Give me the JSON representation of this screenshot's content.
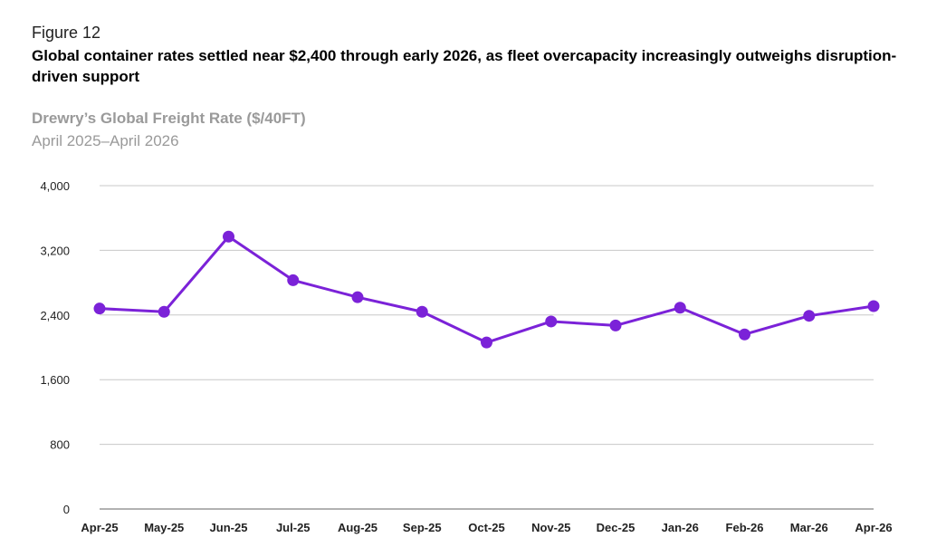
{
  "figure_label": "Figure 12",
  "headline": "Global container rates settled near $2,400 through early 2026, as fleet overcapacity increasingly outweighs disruption-driven support",
  "chart_data": {
    "type": "line",
    "title": "Drewry’s Global Freight Rate ($/40FT)",
    "subtitle": "April 2025–April 2026",
    "xlabel": "",
    "ylabel": "",
    "categories": [
      "Apr-25",
      "May-25",
      "Jun-25",
      "Jul-25",
      "Aug-25",
      "Sep-25",
      "Oct-25",
      "Nov-25",
      "Dec-25",
      "Jan-26",
      "Feb-26",
      "Mar-26",
      "Apr-26"
    ],
    "series": [
      {
        "values": [
          2480,
          2440,
          3370,
          2830,
          2620,
          2440,
          2060,
          2320,
          2270,
          2490,
          2160,
          2390,
          2510
        ]
      }
    ],
    "ylim": [
      0,
      4000
    ],
    "yticks": [
      0,
      800,
      1600,
      2400,
      3200,
      4000
    ],
    "ytick_labels": [
      "0",
      "800",
      "1,600",
      "2,400",
      "3,200",
      "4,000"
    ],
    "grid": true,
    "legend": "none",
    "colors": {
      "line": "#7b22d8",
      "grid": "#c8c8c8",
      "axis": "#999999"
    }
  }
}
